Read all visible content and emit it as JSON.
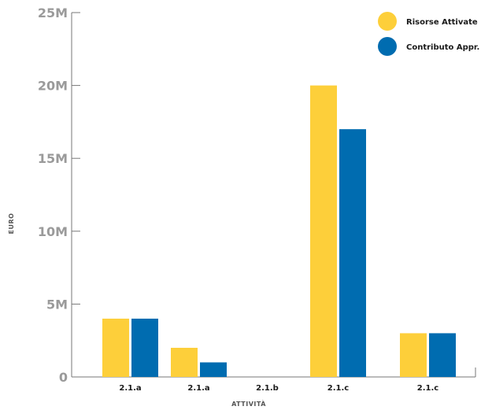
{
  "chart_data": {
    "type": "bar",
    "categories": [
      "2.1.a",
      "2.1.a",
      "2.1.b",
      "2.1.c",
      "2.1.c"
    ],
    "series": [
      {
        "name": "Risorse Attivate",
        "color": "#fdcf3a",
        "values": [
          4000000,
          2000000,
          0,
          20000000,
          3000000
        ]
      },
      {
        "name": "Contributo Appr.",
        "color": "#006cb0",
        "values": [
          4000000,
          1000000,
          0,
          17000000,
          3000000
        ]
      }
    ],
    "xlabel": "ATTIVITÀ",
    "ylabel": "EURO",
    "ylim": [
      0,
      25000000
    ],
    "yticks": [
      0,
      5000000,
      10000000,
      15000000,
      20000000,
      25000000
    ],
    "ytick_labels": [
      "0",
      "5M",
      "10M",
      "15M",
      "20M",
      "25M"
    ],
    "grid": false,
    "legend_position": "top-right"
  }
}
